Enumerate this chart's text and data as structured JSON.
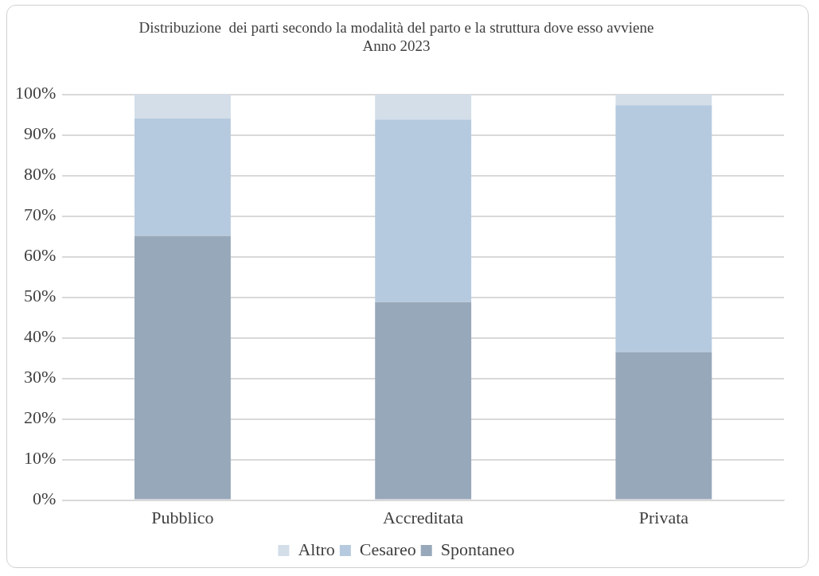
{
  "chart_data": {
    "type": "bar",
    "title": "Distribuzione  dei parti secondo la modalità del parto e la struttura dove esso avviene",
    "subtitle": "Anno 2023",
    "categories": [
      "Pubblico",
      "Accreditata",
      "Privata"
    ],
    "stacked": true,
    "series": [
      {
        "name": "Spontaneo",
        "color": "#97a8ba",
        "values": [
          65.1,
          48.8,
          36.5
        ]
      },
      {
        "name": "Cesareo",
        "color": "#b6cadf",
        "values": [
          29,
          45,
          60.8
        ]
      },
      {
        "name": "Altro",
        "color": "#d3dee9",
        "values": [
          5.9,
          6.2,
          2.7
        ]
      }
    ],
    "ylim": [
      0,
      100
    ],
    "yticks": [
      {
        "value": 0,
        "label": "0%"
      },
      {
        "value": 10,
        "label": "10%"
      },
      {
        "value": 20,
        "label": "20%"
      },
      {
        "value": 30,
        "label": "30%"
      },
      {
        "value": 40,
        "label": "40%"
      },
      {
        "value": 50,
        "label": "50%"
      },
      {
        "value": 60,
        "label": "60%"
      },
      {
        "value": 70,
        "label": "70%"
      },
      {
        "value": 80,
        "label": "80%"
      },
      {
        "value": 90,
        "label": "90%"
      },
      {
        "value": 100,
        "label": "100%"
      }
    ],
    "grid": "y",
    "legend": "bottom"
  }
}
